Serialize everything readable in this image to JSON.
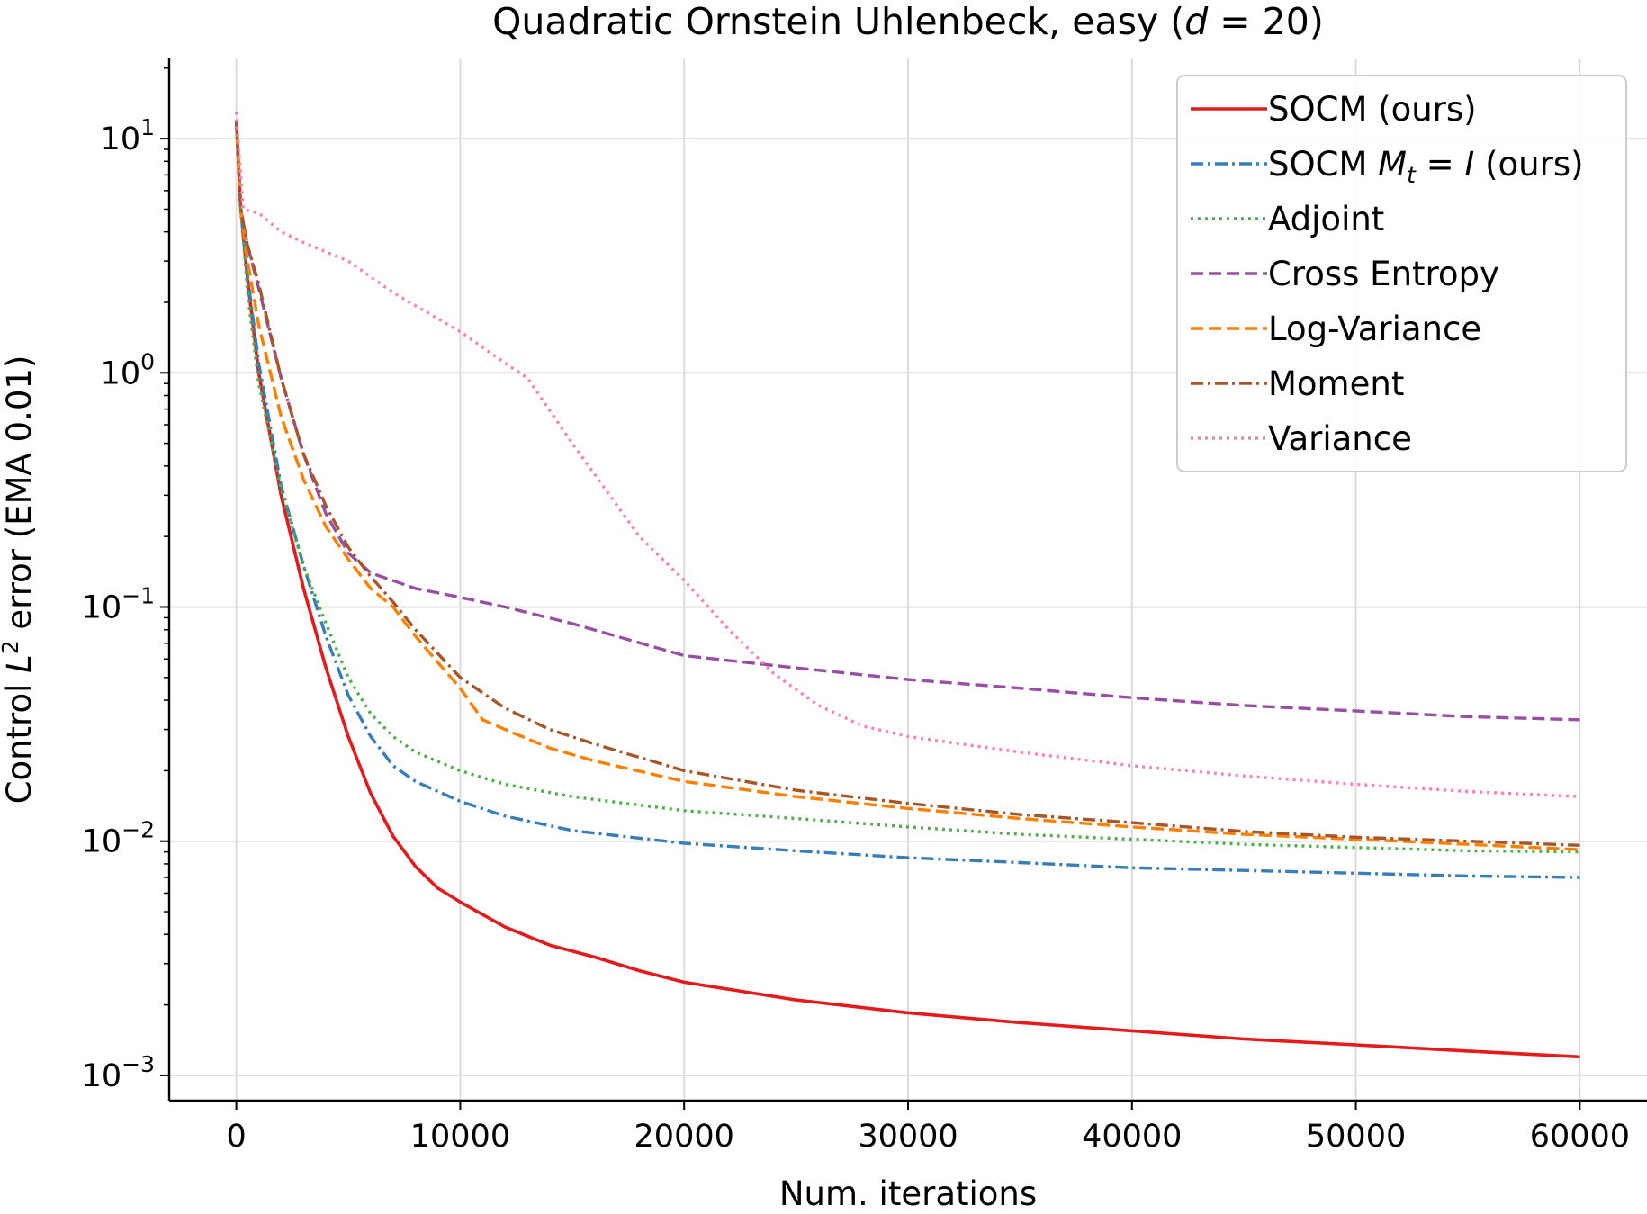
{
  "chart_data": {
    "type": "line",
    "title": "Quadratic Ornstein Uhlenbeck, easy (d = 20)",
    "title_parts": {
      "prefix": "Quadratic Ornstein Uhlenbeck, easy (",
      "var": "d",
      "eq": " = 20)"
    },
    "xlabel": "Num. iterations",
    "ylabel": "Control L² error (EMA 0.01)",
    "ylabel_parts": {
      "prefix": "Control ",
      "var": "L",
      "sup": "2",
      "suffix": " error (EMA 0.01)"
    },
    "y_scale": "log",
    "xlim": [
      -3000,
      63000
    ],
    "ylim": [
      0.00078,
      22
    ],
    "x_ticks": [
      0,
      10000,
      20000,
      30000,
      40000,
      50000,
      60000
    ],
    "x_tick_labels": [
      "0",
      "10000",
      "20000",
      "30000",
      "40000",
      "50000",
      "60000"
    ],
    "y_ticks": [
      0.001,
      0.01,
      0.1,
      1,
      10
    ],
    "y_tick_labels": [
      {
        "base": "10",
        "exp": "−3"
      },
      {
        "base": "10",
        "exp": "−2"
      },
      {
        "base": "10",
        "exp": "−1"
      },
      {
        "base": "10",
        "exp": "0"
      },
      {
        "base": "10",
        "exp": "1"
      }
    ],
    "grid": true,
    "legend_position": "top-right",
    "series": [
      {
        "name": "SOCM (ours)",
        "color": "#e41a1c",
        "style": "solid",
        "x": [
          0,
          200,
          500,
          1000,
          2000,
          3000,
          4000,
          5000,
          6000,
          7000,
          8000,
          9000,
          10000,
          12000,
          14000,
          16000,
          18000,
          20000,
          25000,
          30000,
          35000,
          40000,
          45000,
          50000,
          55000,
          60000
        ],
        "y": [
          12,
          5,
          2.5,
          1.0,
          0.3,
          0.12,
          0.055,
          0.028,
          0.016,
          0.0105,
          0.0078,
          0.0063,
          0.0055,
          0.0043,
          0.0036,
          0.0032,
          0.0028,
          0.0025,
          0.0021,
          0.00185,
          0.00168,
          0.00155,
          0.00143,
          0.00135,
          0.00127,
          0.0012
        ]
      },
      {
        "name": "SOCM M_t = I (ours)",
        "label_parts": {
          "prefix": "SOCM ",
          "var": "M",
          "sub": "t",
          "eq": " = ",
          "var2": "I",
          "suffix": " (ours)"
        },
        "color": "#377eb8",
        "style": "dashdot",
        "x": [
          0,
          200,
          500,
          1000,
          2000,
          3000,
          4000,
          5000,
          6000,
          7000,
          8000,
          10000,
          12000,
          15000,
          20000,
          25000,
          30000,
          35000,
          40000,
          45000,
          50000,
          55000,
          60000
        ],
        "y": [
          12,
          5,
          2.6,
          1.1,
          0.33,
          0.15,
          0.075,
          0.042,
          0.028,
          0.021,
          0.018,
          0.0148,
          0.0128,
          0.0111,
          0.0098,
          0.0091,
          0.0085,
          0.0081,
          0.0077,
          0.0075,
          0.0073,
          0.0071,
          0.007
        ]
      },
      {
        "name": "Adjoint",
        "color": "#4daf4a",
        "style": "dotted",
        "x": [
          0,
          200,
          500,
          1000,
          2000,
          3000,
          4000,
          5000,
          6000,
          7000,
          8000,
          10000,
          12000,
          15000,
          20000,
          25000,
          30000,
          35000,
          40000,
          45000,
          50000,
          55000,
          60000
        ],
        "y": [
          12,
          5,
          2.2,
          0.9,
          0.32,
          0.15,
          0.085,
          0.05,
          0.035,
          0.028,
          0.024,
          0.02,
          0.0175,
          0.0155,
          0.0135,
          0.0125,
          0.0115,
          0.0107,
          0.0102,
          0.0097,
          0.0094,
          0.0091,
          0.009
        ]
      },
      {
        "name": "Cross Entropy",
        "color": "#984ea3",
        "style": "dashed",
        "x": [
          0,
          200,
          500,
          1000,
          2000,
          3000,
          4000,
          5000,
          6000,
          8000,
          10000,
          12000,
          15000,
          20000,
          25000,
          30000,
          35000,
          40000,
          45000,
          50000,
          55000,
          60000
        ],
        "y": [
          12,
          5,
          3.5,
          2.3,
          0.95,
          0.45,
          0.25,
          0.17,
          0.14,
          0.12,
          0.11,
          0.1,
          0.085,
          0.062,
          0.055,
          0.049,
          0.045,
          0.041,
          0.038,
          0.036,
          0.034,
          0.033
        ]
      },
      {
        "name": "Log-Variance",
        "color": "#ff7f00",
        "style": "dashed",
        "x": [
          0,
          200,
          500,
          1000,
          2000,
          3000,
          4000,
          5000,
          6000,
          7000,
          8000,
          9000,
          10000,
          11000,
          12000,
          14000,
          16000,
          20000,
          25000,
          30000,
          35000,
          40000,
          45000,
          50000,
          55000,
          60000
        ],
        "y": [
          12,
          5,
          3,
          1.6,
          0.65,
          0.35,
          0.22,
          0.16,
          0.12,
          0.1,
          0.075,
          0.058,
          0.045,
          0.033,
          0.03,
          0.025,
          0.022,
          0.018,
          0.0155,
          0.0138,
          0.0125,
          0.0115,
          0.0107,
          0.0102,
          0.0097,
          0.0092
        ]
      },
      {
        "name": "Moment",
        "color": "#a65628",
        "style": "dashdot",
        "x": [
          0,
          200,
          500,
          1000,
          2000,
          3000,
          4000,
          5000,
          6000,
          7000,
          8000,
          10000,
          12000,
          14000,
          16000,
          20000,
          25000,
          30000,
          35000,
          40000,
          45000,
          50000,
          55000,
          60000
        ],
        "y": [
          12,
          5,
          3.5,
          2.4,
          0.95,
          0.45,
          0.27,
          0.18,
          0.135,
          0.105,
          0.08,
          0.05,
          0.037,
          0.03,
          0.026,
          0.02,
          0.0165,
          0.0145,
          0.013,
          0.012,
          0.011,
          0.0104,
          0.01,
          0.0096
        ]
      },
      {
        "name": "Variance",
        "color": "#f781bf",
        "style": "dotted",
        "x": [
          0,
          300,
          1000,
          2000,
          3000,
          5000,
          7000,
          10000,
          12000,
          13000,
          15000,
          18000,
          20000,
          22000,
          24000,
          26000,
          28000,
          30000,
          35000,
          40000,
          45000,
          50000,
          55000,
          60000
        ],
        "y": [
          13,
          5,
          4.8,
          4.0,
          3.6,
          3.0,
          2.2,
          1.5,
          1.1,
          0.95,
          0.5,
          0.2,
          0.13,
          0.08,
          0.052,
          0.038,
          0.031,
          0.028,
          0.024,
          0.021,
          0.019,
          0.0175,
          0.0163,
          0.0155
        ]
      }
    ]
  }
}
